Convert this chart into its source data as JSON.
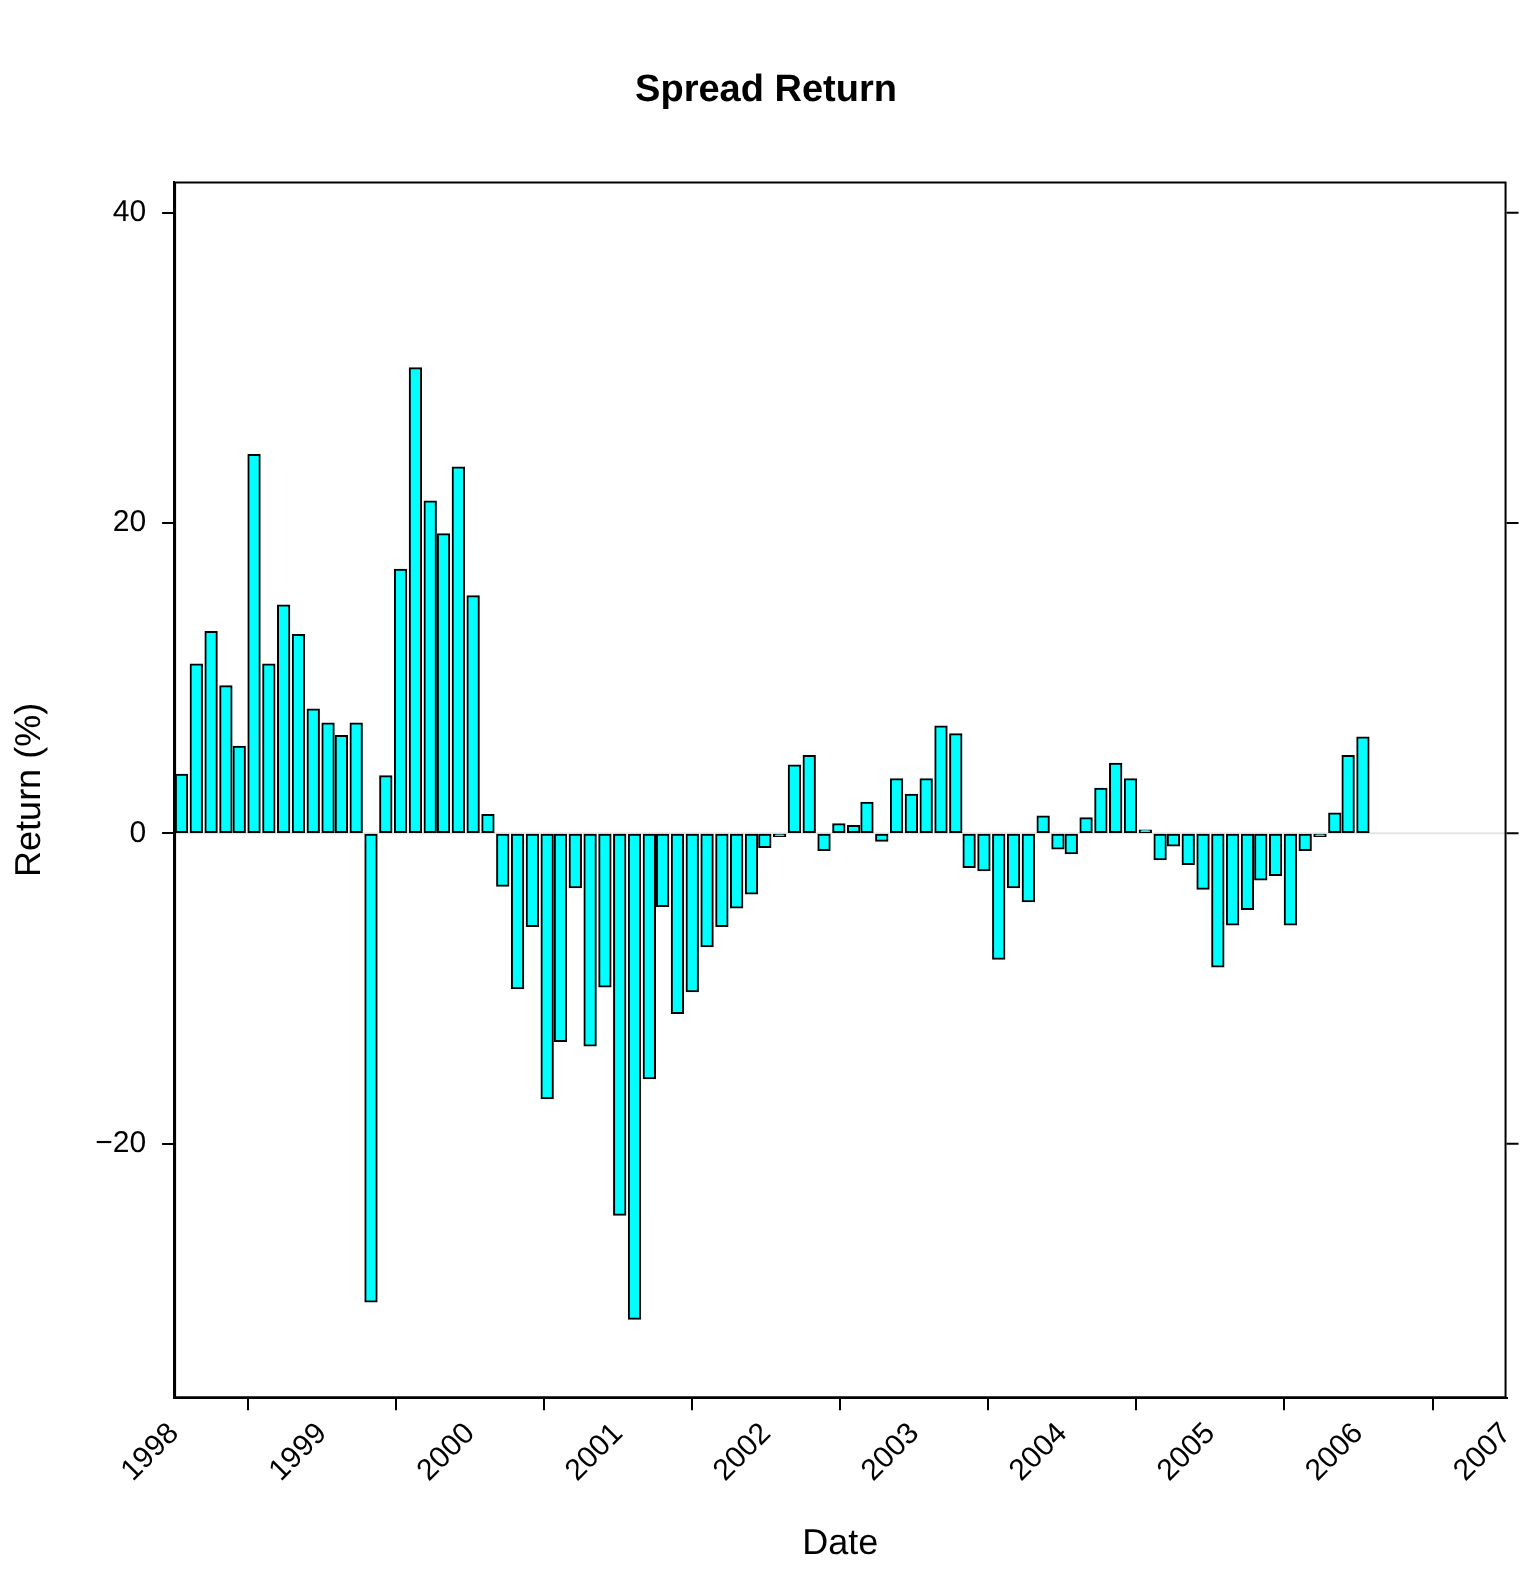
{
  "chart_data": {
    "type": "bar",
    "title": "Spread Return",
    "xlabel": "Date",
    "ylabel": "Return (%)",
    "x": [
      1998.05,
      1998.15,
      1998.25,
      1998.35,
      1998.44,
      1998.54,
      1998.64,
      1998.74,
      1998.84,
      1998.94,
      1999.04,
      1999.13,
      1999.23,
      1999.33,
      1999.43,
      1999.53,
      1999.63,
      1999.73,
      1999.82,
      1999.92,
      2000.02,
      2000.12,
      2000.22,
      2000.32,
      2000.42,
      2000.52,
      2000.61,
      2000.71,
      2000.81,
      2000.91,
      2001.01,
      2001.11,
      2001.21,
      2001.3,
      2001.4,
      2001.5,
      2001.6,
      2001.7,
      2001.8,
      2001.9,
      2001.99,
      2002.09,
      2002.19,
      2002.29,
      2002.39,
      2002.49,
      2002.59,
      2002.68,
      2002.78,
      2002.88,
      2002.98,
      2003.08,
      2003.18,
      2003.28,
      2003.37,
      2003.47,
      2003.57,
      2003.67,
      2003.77,
      2003.87,
      2003.97,
      2004.06,
      2004.16,
      2004.26,
      2004.36,
      2004.46,
      2004.56,
      2004.66,
      2004.75,
      2004.85,
      2004.95,
      2005.05,
      2005.15,
      2005.25,
      2005.34,
      2005.44,
      2005.54,
      2005.64,
      2005.74,
      2005.84,
      2005.93,
      2006.03
    ],
    "values": [
      3.8,
      10.9,
      13.0,
      9.5,
      5.6,
      24.4,
      10.9,
      14.7,
      12.8,
      8.0,
      7.1,
      6.3,
      7.1,
      -30.2,
      3.7,
      17.0,
      30.0,
      21.4,
      19.3,
      23.6,
      15.3,
      1.2,
      -3.4,
      -10.0,
      -6.0,
      -17.1,
      -13.4,
      -3.5,
      -13.7,
      -9.9,
      -24.6,
      -31.3,
      -15.8,
      -4.7,
      -11.6,
      -10.2,
      -7.3,
      -6.0,
      -4.8,
      -3.9,
      -0.9,
      -0.2,
      4.4,
      5.0,
      -1.1,
      0.6,
      0.5,
      2.0,
      -0.5,
      3.5,
      2.5,
      3.5,
      6.9,
      6.4,
      -2.2,
      -2.4,
      -8.1,
      -3.5,
      -4.4,
      1.1,
      -1.0,
      -1.3,
      1.0,
      2.9,
      4.5,
      3.5,
      0.2,
      -1.7,
      -0.8,
      -2.0,
      -3.6,
      -8.6,
      -5.9,
      -4.9,
      -3.0,
      -2.7,
      -5.9,
      -1.1,
      -0.2,
      1.3,
      5.0,
      6.2
    ],
    "color": "#00ffff",
    "xlim": [
      1998,
      2007
    ],
    "xticks": [
      1998,
      1999,
      2000,
      2001,
      2002,
      2003,
      2004,
      2005,
      2006,
      2007
    ],
    "ylim": [
      -36.4,
      42
    ],
    "yticks": [
      {
        "value": -20,
        "label": "−20"
      },
      0,
      20,
      40
    ],
    "ref_lines": [
      {
        "axis": "y",
        "value": 0,
        "color": "#e6e6e6"
      }
    ],
    "grid": false,
    "legend": false
  }
}
